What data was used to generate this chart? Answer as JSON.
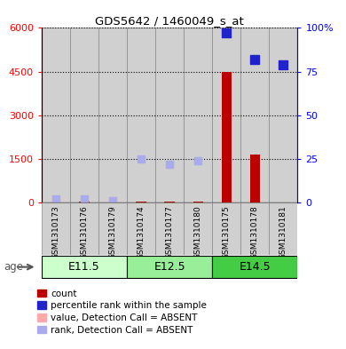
{
  "title": "GDS5642 / 1460049_s_at",
  "samples": [
    "GSM1310173",
    "GSM1310176",
    "GSM1310179",
    "GSM1310174",
    "GSM1310177",
    "GSM1310180",
    "GSM1310175",
    "GSM1310178",
    "GSM1310181"
  ],
  "groups": [
    {
      "label": "E11.5",
      "indices": [
        0,
        1,
        2
      ],
      "color": "#ccffcc"
    },
    {
      "label": "E12.5",
      "indices": [
        3,
        4,
        5
      ],
      "color": "#99ee99"
    },
    {
      "label": "E14.5",
      "indices": [
        6,
        7,
        8
      ],
      "color": "#44cc44"
    }
  ],
  "count_values": [
    0,
    20,
    0,
    20,
    15,
    15,
    4500,
    1650,
    0
  ],
  "percentile_values_pct": [
    0,
    0,
    0,
    0,
    0,
    0,
    97,
    82,
    79
  ],
  "absent_value_values": [
    80,
    0,
    50,
    0,
    0,
    0,
    0,
    0,
    0
  ],
  "absent_rank_pct": [
    2,
    2,
    1,
    25,
    22,
    24,
    0,
    0,
    0
  ],
  "ylim_left": [
    0,
    6000
  ],
  "ylim_right": [
    0,
    100
  ],
  "yticks_left": [
    0,
    1500,
    3000,
    4500,
    6000
  ],
  "ytick_labels_left": [
    "0",
    "1500",
    "3000",
    "4500",
    "6000"
  ],
  "yticks_right": [
    0,
    25,
    50,
    75,
    100
  ],
  "ytick_labels_right": [
    "0",
    "25",
    "50",
    "75",
    "100%"
  ],
  "count_color": "#bb0000",
  "percentile_color": "#2222cc",
  "absent_value_color": "#ffaaaa",
  "absent_rank_color": "#aaaaee",
  "bar_width": 0.35,
  "legend_items": [
    {
      "color": "#bb0000",
      "label": "count"
    },
    {
      "color": "#2222cc",
      "label": "percentile rank within the sample"
    },
    {
      "color": "#ffaaaa",
      "label": "value, Detection Call = ABSENT"
    },
    {
      "color": "#aaaaee",
      "label": "rank, Detection Call = ABSENT"
    }
  ]
}
